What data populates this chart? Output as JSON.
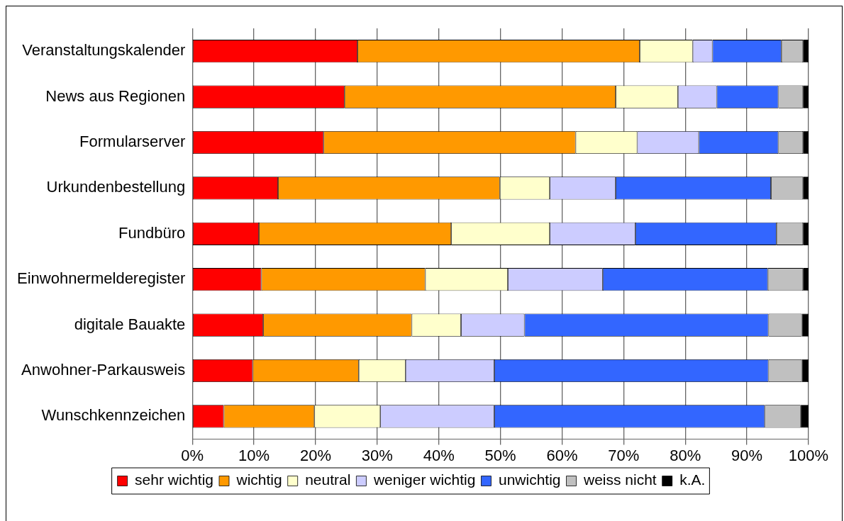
{
  "chart_data": {
    "type": "bar",
    "orientation": "horizontal",
    "stacked": true,
    "grid": "x",
    "legend": "bottom",
    "categories": [
      "Veranstaltungskalender",
      "News aus Regionen",
      "Formularserver",
      "Urkundenbestellung",
      "Fundbüro",
      "Einwohnermelderegister",
      "digitale Bauakte",
      "Anwohner-Parkausweis",
      "Wunschkennzeichen"
    ],
    "xlim": [
      0,
      100
    ],
    "xticks": [
      {
        "value": 0,
        "label": "0%"
      },
      {
        "value": 10,
        "label": "10%"
      },
      {
        "value": 20,
        "label": "20%"
      },
      {
        "value": 30,
        "label": "30%"
      },
      {
        "value": 40,
        "label": "40%"
      },
      {
        "value": 50,
        "label": "50%"
      },
      {
        "value": 60,
        "label": "60%"
      },
      {
        "value": 70,
        "label": "70%"
      },
      {
        "value": 80,
        "label": "80%"
      },
      {
        "value": 90,
        "label": "90%"
      },
      {
        "value": 100,
        "label": "100%"
      }
    ],
    "series": [
      {
        "name": "sehr wichtig",
        "color": "#ff0000",
        "values": [
          26.8,
          24.7,
          21.3,
          13.9,
          10.8,
          11.2,
          11.5,
          9.8,
          5.1
        ]
      },
      {
        "name": "wichtig",
        "color": "#ff9900",
        "values": [
          45.8,
          44.0,
          40.9,
          36.0,
          31.2,
          26.6,
          24.1,
          17.2,
          14.7
        ]
      },
      {
        "name": "neutral",
        "color": "#ffffcc",
        "values": [
          8.6,
          10.1,
          10.0,
          8.1,
          16.0,
          13.4,
          8.0,
          7.6,
          10.7
        ]
      },
      {
        "name": "weniger wichtig",
        "color": "#ccccff",
        "values": [
          3.2,
          6.3,
          10.0,
          10.7,
          13.9,
          15.4,
          10.3,
          14.4,
          18.5
        ]
      },
      {
        "name": "unwichtig",
        "color": "#3366ff",
        "values": [
          11.2,
          10.0,
          12.9,
          25.2,
          22.9,
          26.8,
          39.6,
          44.5,
          43.9
        ]
      },
      {
        "name": "weiss nicht",
        "color": "#c0c0c0",
        "values": [
          3.5,
          4.0,
          4.0,
          5.2,
          4.3,
          5.7,
          5.4,
          5.4,
          5.8
        ]
      },
      {
        "name": "k.A.",
        "color": "#000000",
        "values": [
          0.9,
          0.9,
          0.9,
          0.9,
          0.9,
          0.9,
          1.1,
          1.1,
          1.3
        ]
      }
    ]
  }
}
